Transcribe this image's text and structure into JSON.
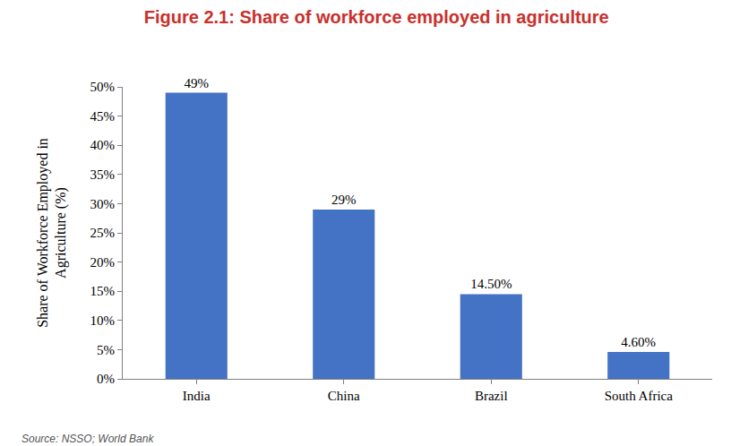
{
  "chart_data": {
    "type": "bar",
    "title": "Figure 2.1: Share of workforce employed in agriculture",
    "y_label": "Share of Workforce Employed in Agriculture (%)",
    "source": "Source: NSSO; World Bank",
    "categories": [
      "India",
      "China",
      "Brazil",
      "South Africa"
    ],
    "values": [
      49,
      29,
      14.5,
      4.6
    ],
    "value_labels": [
      "49%",
      "29%",
      "14.50%",
      "4.60%"
    ],
    "color": "#4472c4",
    "ylim": [
      0,
      50
    ],
    "yticks": [
      {
        "value": 0,
        "label": "0%"
      },
      {
        "value": 5,
        "label": "5%"
      },
      {
        "value": 10,
        "label": "10%"
      },
      {
        "value": 15,
        "label": "15%"
      },
      {
        "value": 20,
        "label": "20%"
      },
      {
        "value": 25,
        "label": "25%"
      },
      {
        "value": 30,
        "label": "30%"
      },
      {
        "value": 35,
        "label": "35%"
      },
      {
        "value": 40,
        "label": "40%"
      },
      {
        "value": 45,
        "label": "45%"
      },
      {
        "value": 50,
        "label": "50%"
      }
    ],
    "grid": false,
    "data_labels": true
  }
}
